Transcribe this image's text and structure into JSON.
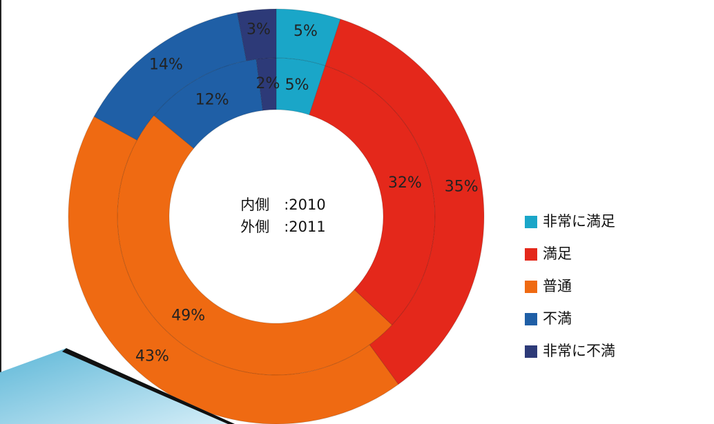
{
  "chart_data": {
    "type": "pie",
    "categories": [
      "非常に満足",
      "満足",
      "普通",
      "不満",
      "非常に不満"
    ],
    "colors": [
      "#1aa6c8",
      "#e4281b",
      "#ef6a12",
      "#1f5fa6",
      "#2d3a78"
    ],
    "series": [
      {
        "values": [
          5,
          32,
          49,
          12,
          2
        ],
        "value_labels": [
          "5%",
          "32%",
          "49%",
          "12%",
          "2%"
        ]
      },
      {
        "values": [
          5,
          35,
          43,
          14,
          3
        ],
        "value_labels": [
          "5%",
          "35%",
          "43%",
          "14%",
          "3%"
        ]
      }
    ],
    "annotations": [
      "内側　:2010",
      "外側　:2011"
    ],
    "legend": "right"
  }
}
